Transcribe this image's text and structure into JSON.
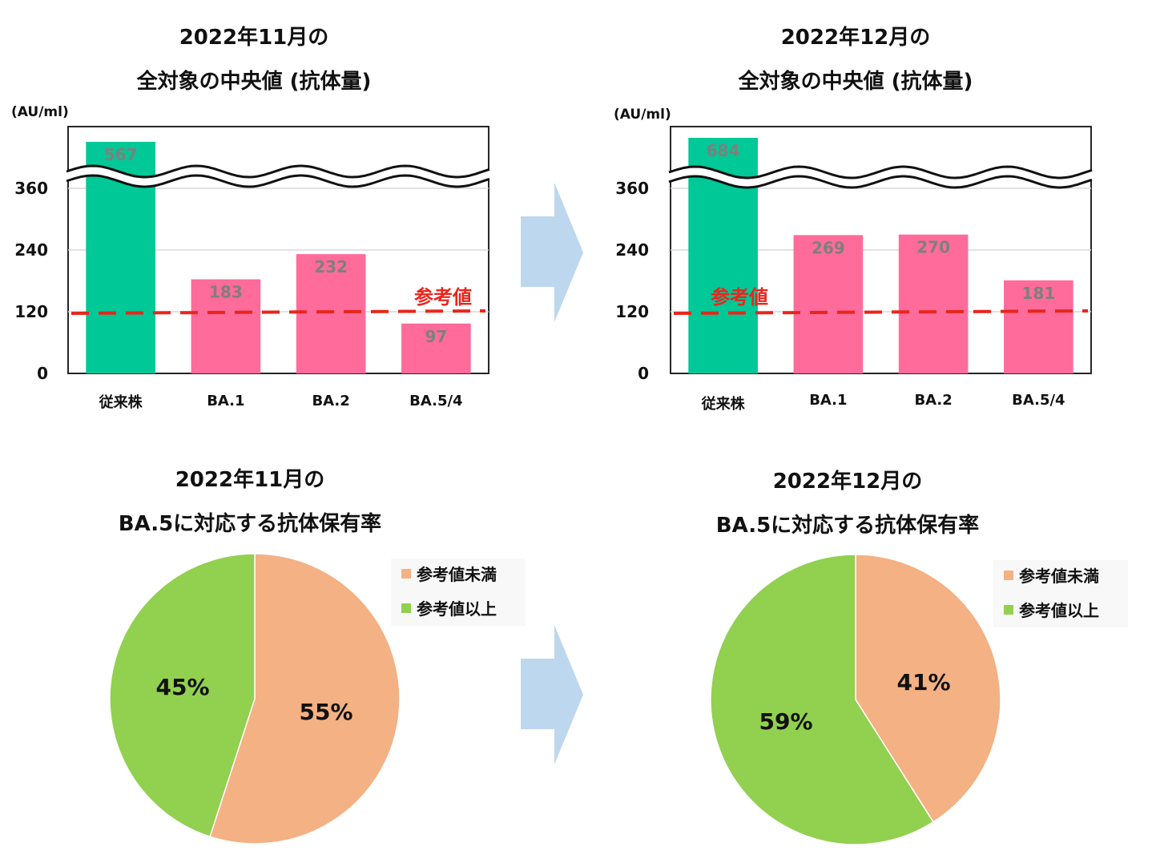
{
  "colors": {
    "conventional": "#00c896",
    "variant": "#ff6b9a",
    "reference_line": "#e8261c",
    "below_reference": "#f4b183",
    "above_reference": "#92d050",
    "arrow": "#bdd7ee",
    "grid": "#d9d9d9",
    "value_label": "#7f7f7f"
  },
  "icons": {
    "arrow": "right-chevron-arrow-icon"
  },
  "chart_data": [
    {
      "type": "bar",
      "title_line1": "2022年11月の",
      "title_line2": "全対象の中央値 (抗体量)",
      "unit": "(AU/ml)",
      "categories": [
        "従来株",
        "BA.1",
        "BA.2",
        "BA.5/4"
      ],
      "values": [
        567,
        183,
        232,
        97
      ],
      "value_labels": [
        "567",
        "183",
        "232",
        "97"
      ],
      "y_ticks": [
        "0",
        "120",
        "240",
        "360"
      ],
      "ylim": [
        0,
        400
      ],
      "axis_break": true,
      "reference_value": 120,
      "reference_label": "参考値",
      "reference_label_placement": "right"
    },
    {
      "type": "bar",
      "title_line1": "2022年12月の",
      "title_line2": "全対象の中央値 (抗体量)",
      "unit": "(AU/ml)",
      "categories": [
        "従来株",
        "BA.1",
        "BA.2",
        "BA.5/4"
      ],
      "values": [
        684,
        269,
        270,
        181
      ],
      "value_labels": [
        "684",
        "269",
        "270",
        "181"
      ],
      "y_ticks": [
        "0",
        "120",
        "240",
        "360"
      ],
      "ylim": [
        0,
        400
      ],
      "axis_break": true,
      "reference_value": 120,
      "reference_label": "参考値",
      "reference_label_placement": "left"
    },
    {
      "type": "pie",
      "title_line1": "2022年11月の",
      "title_line2": "BA.5に対応する抗体保有率",
      "slices": [
        {
          "label": "参考値未満",
          "value": 55,
          "text": "55%"
        },
        {
          "label": "参考値以上",
          "value": 45,
          "text": "45%"
        }
      ],
      "legend": [
        "参考値未満",
        "参考値以上"
      ],
      "legend_placement": "top-right"
    },
    {
      "type": "pie",
      "title_line1": "2022年12月の",
      "title_line2": "BA.5に対応する抗体保有率",
      "slices": [
        {
          "label": "参考値未満",
          "value": 41,
          "text": "41%"
        },
        {
          "label": "参考値以上",
          "value": 59,
          "text": "59%"
        }
      ],
      "legend": [
        "参考値未満",
        "参考値以上"
      ],
      "legend_placement": "top-right"
    }
  ]
}
